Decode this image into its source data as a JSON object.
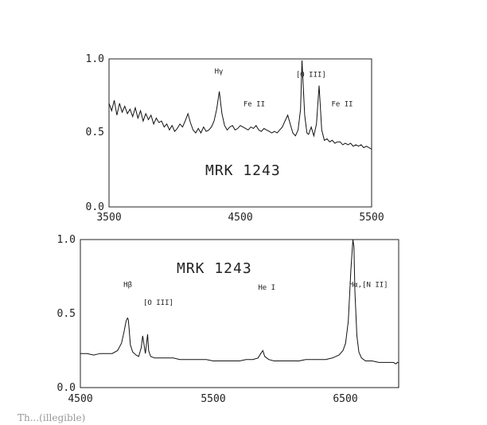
{
  "chart_data": [
    {
      "type": "line",
      "xlim": [
        3500,
        5500
      ],
      "ylim": [
        0.0,
        1.0
      ],
      "x_ticks": [
        "3500",
        "4500",
        "5500"
      ],
      "y_ticks": [
        "0.0",
        "0.5",
        "1.0"
      ],
      "object_label": "MRK 1243",
      "annotations": [
        {
          "text": "Hγ",
          "x": 4340,
          "y": 0.9
        },
        {
          "text": "Fe II",
          "x": 4560,
          "y": 0.68
        },
        {
          "text": "[O III]",
          "x": 4960,
          "y": 0.88
        },
        {
          "text": "Fe II",
          "x": 5230,
          "y": 0.68
        }
      ],
      "series": [
        {
          "x": [
            3500,
            3520,
            3540,
            3560,
            3580,
            3600,
            3620,
            3640,
            3660,
            3680,
            3700,
            3720,
            3740,
            3760,
            3780,
            3800,
            3820,
            3840,
            3860,
            3880,
            3900,
            3920,
            3940,
            3960,
            3980,
            4000,
            4020,
            4040,
            4060,
            4080,
            4101,
            4120,
            4140,
            4160,
            4180,
            4200,
            4220,
            4240,
            4260,
            4280,
            4300,
            4320,
            4340,
            4360,
            4380,
            4400,
            4420,
            4440,
            4460,
            4480,
            4500,
            4520,
            4540,
            4560,
            4580,
            4600,
            4620,
            4640,
            4660,
            4680,
            4700,
            4720,
            4740,
            4760,
            4780,
            4800,
            4820,
            4840,
            4861,
            4880,
            4900,
            4920,
            4940,
            4959,
            4970,
            4990,
            5007,
            5020,
            5040,
            5060,
            5080,
            5100,
            5120,
            5140,
            5160,
            5180,
            5200,
            5220,
            5240,
            5260,
            5280,
            5300,
            5320,
            5340,
            5360,
            5380,
            5400,
            5420,
            5440,
            5460,
            5480,
            5500
          ],
          "y": [
            0.7,
            0.65,
            0.72,
            0.62,
            0.7,
            0.64,
            0.68,
            0.63,
            0.66,
            0.61,
            0.67,
            0.6,
            0.65,
            0.58,
            0.63,
            0.59,
            0.62,
            0.56,
            0.6,
            0.57,
            0.58,
            0.54,
            0.56,
            0.52,
            0.55,
            0.51,
            0.53,
            0.56,
            0.54,
            0.58,
            0.63,
            0.57,
            0.52,
            0.5,
            0.53,
            0.5,
            0.54,
            0.51,
            0.52,
            0.54,
            0.58,
            0.66,
            0.78,
            0.63,
            0.55,
            0.52,
            0.54,
            0.55,
            0.52,
            0.53,
            0.55,
            0.54,
            0.53,
            0.52,
            0.54,
            0.53,
            0.55,
            0.52,
            0.51,
            0.53,
            0.52,
            0.51,
            0.5,
            0.51,
            0.5,
            0.52,
            0.54,
            0.58,
            0.62,
            0.56,
            0.5,
            0.48,
            0.52,
            0.66,
            0.99,
            0.62,
            0.5,
            0.49,
            0.54,
            0.48,
            0.56,
            0.82,
            0.52,
            0.45,
            0.46,
            0.44,
            0.45,
            0.43,
            0.44,
            0.44,
            0.42,
            0.43,
            0.42,
            0.43,
            0.41,
            0.42,
            0.41,
            0.42,
            0.4,
            0.41,
            0.4,
            0.39
          ]
        }
      ]
    },
    {
      "type": "line",
      "xlim": [
        4500,
        6900
      ],
      "ylim": [
        0.0,
        1.0
      ],
      "x_ticks": [
        "4500",
        "5500",
        "6500"
      ],
      "y_ticks": [
        "0.0",
        "0.5",
        "1.0"
      ],
      "object_label": "MRK 1243",
      "annotations": [
        {
          "text": "Hβ",
          "x": 4861,
          "y": 0.68
        },
        {
          "text": "[O III]",
          "x": 5010,
          "y": 0.56
        },
        {
          "text": "He I",
          "x": 5876,
          "y": 0.66
        },
        {
          "text": "Hα,[N II]",
          "x": 6563,
          "y": 0.68
        }
      ],
      "series": [
        {
          "x": [
            4500,
            4550,
            4600,
            4650,
            4700,
            4740,
            4780,
            4810,
            4830,
            4845,
            4855,
            4861,
            4867,
            4877,
            4895,
            4920,
            4940,
            4959,
            4970,
            4990,
            5007,
            5015,
            5030,
            5060,
            5100,
            5150,
            5200,
            5250,
            5300,
            5350,
            5400,
            5450,
            5500,
            5550,
            5600,
            5650,
            5700,
            5750,
            5800,
            5840,
            5860,
            5876,
            5890,
            5920,
            5960,
            6000,
            6050,
            6100,
            6150,
            6200,
            6250,
            6300,
            6350,
            6400,
            6450,
            6480,
            6500,
            6520,
            6540,
            6555,
            6563,
            6570,
            6585,
            6600,
            6620,
            6650,
            6700,
            6750,
            6800,
            6820,
            6840,
            6860,
            6880,
            6890,
            6900,
            6900
          ],
          "y": [
            0.23,
            0.23,
            0.22,
            0.23,
            0.23,
            0.23,
            0.25,
            0.3,
            0.38,
            0.45,
            0.47,
            0.46,
            0.4,
            0.29,
            0.24,
            0.22,
            0.21,
            0.27,
            0.35,
            0.23,
            0.36,
            0.25,
            0.21,
            0.2,
            0.2,
            0.2,
            0.2,
            0.19,
            0.19,
            0.19,
            0.19,
            0.19,
            0.18,
            0.18,
            0.18,
            0.18,
            0.18,
            0.19,
            0.19,
            0.2,
            0.23,
            0.25,
            0.21,
            0.19,
            0.18,
            0.18,
            0.18,
            0.18,
            0.18,
            0.19,
            0.19,
            0.19,
            0.19,
            0.2,
            0.22,
            0.25,
            0.3,
            0.45,
            0.8,
            1.0,
            0.95,
            0.65,
            0.35,
            0.24,
            0.2,
            0.18,
            0.18,
            0.17,
            0.17,
            0.17,
            0.17,
            0.17,
            0.16,
            0.17,
            0.17,
            0.0
          ]
        }
      ]
    }
  ],
  "figure_label": "Th...(illegible)"
}
